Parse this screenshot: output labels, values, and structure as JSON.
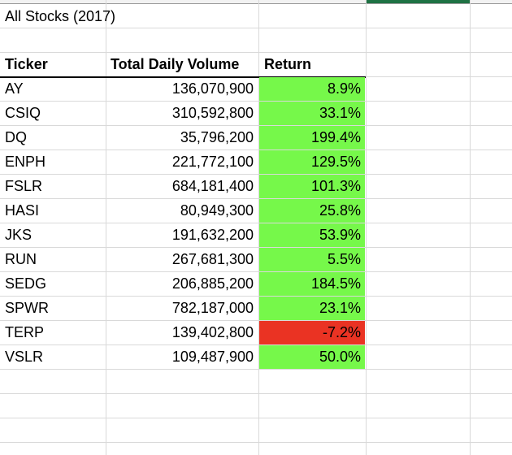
{
  "sheet": {
    "title": "All Stocks (2017)",
    "headers": {
      "ticker": "Ticker",
      "volume": "Total Daily Volume",
      "return": "Return"
    },
    "colors": {
      "positive_fill": "#76f84a",
      "negative_fill": "#ea3323",
      "grid": "#d9d9d9",
      "accent": "#1f7244"
    },
    "rows": [
      {
        "ticker": "AY",
        "volume": "136,070,900",
        "return": "8.9%",
        "sign": "pos"
      },
      {
        "ticker": "CSIQ",
        "volume": "310,592,800",
        "return": "33.1%",
        "sign": "pos"
      },
      {
        "ticker": "DQ",
        "volume": "35,796,200",
        "return": "199.4%",
        "sign": "pos"
      },
      {
        "ticker": "ENPH",
        "volume": "221,772,100",
        "return": "129.5%",
        "sign": "pos"
      },
      {
        "ticker": "FSLR",
        "volume": "684,181,400",
        "return": "101.3%",
        "sign": "pos"
      },
      {
        "ticker": "HASI",
        "volume": "80,949,300",
        "return": "25.8%",
        "sign": "pos"
      },
      {
        "ticker": "JKS",
        "volume": "191,632,200",
        "return": "53.9%",
        "sign": "pos"
      },
      {
        "ticker": "RUN",
        "volume": "267,681,300",
        "return": "5.5%",
        "sign": "pos"
      },
      {
        "ticker": "SEDG",
        "volume": "206,885,200",
        "return": "184.5%",
        "sign": "pos"
      },
      {
        "ticker": "SPWR",
        "volume": "782,187,000",
        "return": "23.1%",
        "sign": "pos"
      },
      {
        "ticker": "TERP",
        "volume": "139,402,800",
        "return": "-7.2%",
        "sign": "neg"
      },
      {
        "ticker": "VSLR",
        "volume": "109,487,900",
        "return": "50.0%",
        "sign": "pos"
      }
    ]
  }
}
